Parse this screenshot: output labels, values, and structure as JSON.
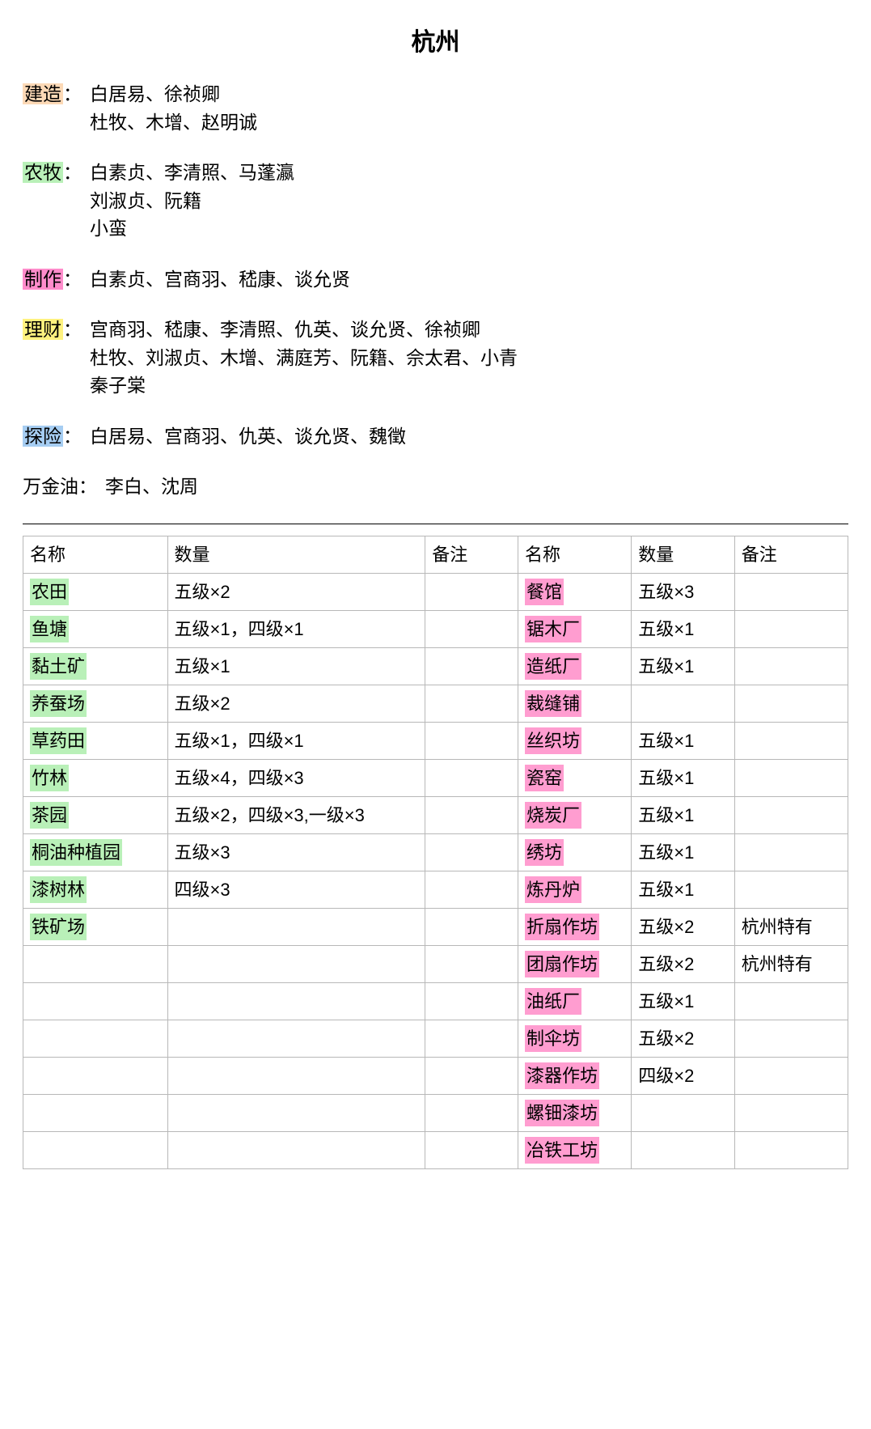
{
  "title": "杭州",
  "colors": {
    "orange": "#fcd9b6",
    "green": "#b9f0b8",
    "pink": "#ff8ccb",
    "yellow": "#fff27f",
    "blue": "#a6cdf2",
    "pink2": "#ff9dd0",
    "border": "#b8b8b8"
  },
  "categories": [
    {
      "label": "建造",
      "highlight": "orange",
      "lines": [
        "白居易、徐祯卿",
        "杜牧、木增、赵明诚"
      ]
    },
    {
      "label": "农牧",
      "highlight": "green",
      "lines": [
        "白素贞、李清照、马蓬瀛",
        "刘淑贞、阮籍",
        "小蛮"
      ]
    },
    {
      "label": "制作",
      "highlight": "pink",
      "lines": [
        "白素贞、宫商羽、嵇康、谈允贤"
      ]
    },
    {
      "label": "理财",
      "highlight": "yellow",
      "lines": [
        "宫商羽、嵇康、李清照、仇英、谈允贤、徐祯卿",
        "杜牧、刘淑贞、木增、满庭芳、阮籍、佘太君、小青",
        "秦子棠"
      ]
    },
    {
      "label": "探险",
      "highlight": "blue",
      "lines": [
        "白居易、宫商羽、仇英、谈允贤、魏徵"
      ]
    },
    {
      "label": "万金油",
      "highlight": "",
      "lines": [
        "李白、沈周"
      ]
    }
  ],
  "table": {
    "headers": [
      "名称",
      "数量",
      "备注",
      "名称",
      "数量",
      "备注"
    ],
    "leftHighlight": "green",
    "rightHighlight": "pink2",
    "rows": [
      {
        "l_name": "农田",
        "l_qty": "五级×2",
        "l_note": "",
        "r_name": "餐馆",
        "r_qty": " 五级×3",
        "r_note": ""
      },
      {
        "l_name": "鱼塘",
        "l_qty": "五级×1，四级×1",
        "l_note": "",
        "r_name": "锯木厂",
        "r_qty": "五级×1",
        "r_note": ""
      },
      {
        "l_name": "黏土矿",
        "l_qty": "五级×1",
        "l_note": "",
        "r_name": "造纸厂",
        "r_qty": "五级×1",
        "r_note": ""
      },
      {
        "l_name": "养蚕场",
        "l_qty": "五级×2",
        "l_note": "",
        "r_name": "裁缝铺",
        "r_qty": "",
        "r_note": ""
      },
      {
        "l_name": "草药田",
        "l_qty": " 五级×1，四级×1",
        "l_note": "",
        "r_name": "丝织坊",
        "r_qty": "五级×1",
        "r_note": ""
      },
      {
        "l_name": "竹林",
        "l_qty": " 五级×4，四级×3",
        "l_note": "",
        "r_name": "瓷窑",
        "r_qty": "五级×1",
        "r_note": ""
      },
      {
        "l_name": "茶园",
        "l_qty": "五级×2，四级×3,一级×3",
        "l_note": "",
        "r_name": "烧炭厂",
        "r_qty": "五级×1",
        "r_note": ""
      },
      {
        "l_name": "桐油种植园",
        "l_qty": "五级×3",
        "l_note": "",
        "r_name": "绣坊",
        "r_qty": "五级×1",
        "r_note": ""
      },
      {
        "l_name": "漆树林",
        "l_qty": "四级×3",
        "l_note": "",
        "r_name": "炼丹炉",
        "r_qty": "五级×1",
        "r_note": ""
      },
      {
        "l_name": "铁矿场",
        "l_qty": "",
        "l_note": "",
        "r_name": "折扇作坊",
        "r_qty": "五级×2",
        "r_note": "杭州特有"
      },
      {
        "l_name": "",
        "l_qty": "",
        "l_note": "",
        "r_name": "团扇作坊",
        "r_qty": "五级×2",
        "r_note": "杭州特有"
      },
      {
        "l_name": "",
        "l_qty": "",
        "l_note": "",
        "r_name": "油纸厂",
        "r_qty": "五级×1",
        "r_note": ""
      },
      {
        "l_name": "",
        "l_qty": "",
        "l_note": "",
        "r_name": "制伞坊",
        "r_qty": "五级×2",
        "r_note": ""
      },
      {
        "l_name": "",
        "l_qty": "",
        "l_note": "",
        "r_name": "漆器作坊",
        "r_qty": "四级×2",
        "r_note": ""
      },
      {
        "l_name": "",
        "l_qty": "",
        "l_note": "",
        "r_name": "螺钿漆坊",
        "r_qty": "",
        "r_note": ""
      },
      {
        "l_name": "",
        "l_qty": "",
        "l_note": "",
        "r_name": "冶铁工坊",
        "r_qty": "",
        "r_note": ""
      }
    ]
  }
}
